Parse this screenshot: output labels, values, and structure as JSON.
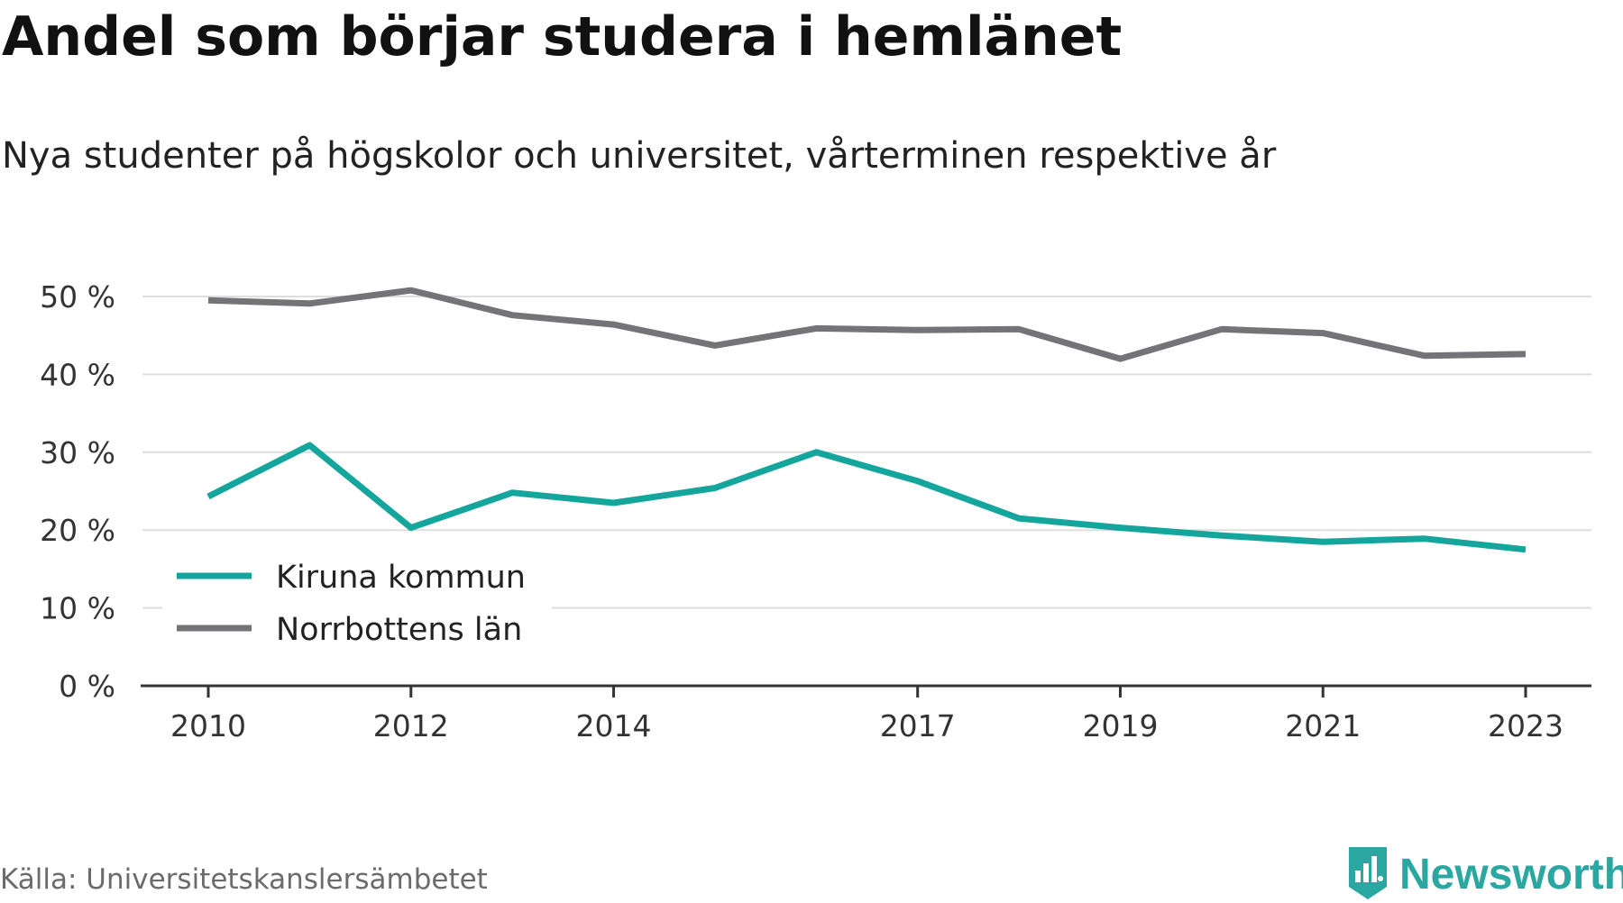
{
  "title": "Andel som börjar studera i hemlänet",
  "subtitle": "Nya studenter på högskolor och universitet, vårterminen respektive år",
  "source": "Källa: Universitetskanslersämbetet",
  "brand": {
    "name": "Newsworthy",
    "icon": "newsworthy-logo-icon",
    "color": "#2aa7a0"
  },
  "chart_data": {
    "type": "line",
    "x": [
      2010,
      2011,
      2012,
      2013,
      2014,
      2015,
      2016,
      2017,
      2018,
      2019,
      2020,
      2021,
      2022,
      2023
    ],
    "x_tick_labels": [
      "2010",
      "2012",
      "2014",
      "2017",
      "2019",
      "2021",
      "2023"
    ],
    "y_tick_labels": [
      "0 %",
      "10 %",
      "20 %",
      "30 %",
      "40 %",
      "50 %"
    ],
    "ylim": [
      0,
      50
    ],
    "grid": true,
    "legend_position": "bottom-left",
    "series": [
      {
        "name": "Kiruna kommun",
        "color": "#14a69c",
        "values": [
          24.3,
          30.9,
          20.3,
          24.8,
          23.5,
          25.4,
          30.0,
          26.3,
          21.5,
          20.3,
          19.3,
          18.5,
          18.9,
          17.5
        ]
      },
      {
        "name": "Norrbottens län",
        "color": "#747378",
        "values": [
          49.5,
          49.1,
          50.8,
          47.6,
          46.4,
          43.7,
          45.9,
          45.7,
          45.8,
          42.0,
          45.8,
          45.3,
          42.4,
          42.6
        ]
      }
    ]
  }
}
